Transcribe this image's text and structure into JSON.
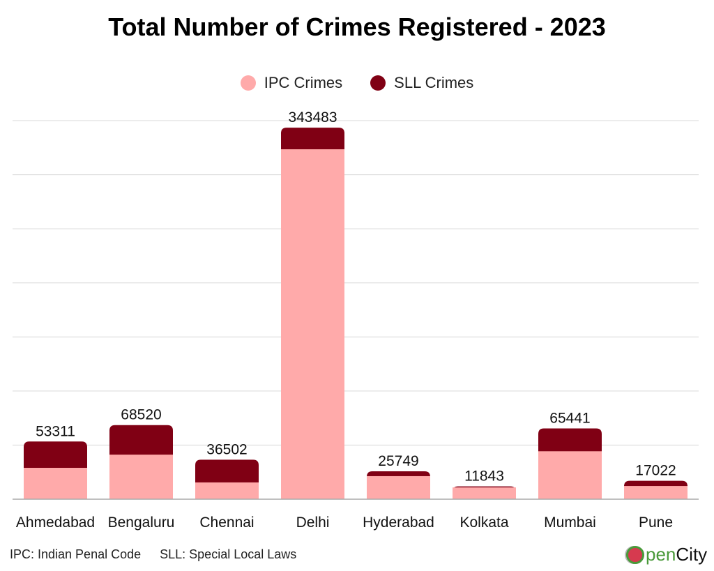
{
  "chart_data": {
    "type": "bar",
    "stacked": true,
    "title": "Total Number of Crimes Registered - 2023",
    "categories": [
      "Ahmedabad",
      "Bengaluru",
      "Chennai",
      "Delhi",
      "Hyderabad",
      "Kolkata",
      "Mumbai",
      "Pune"
    ],
    "series": [
      {
        "name": "IPC Crimes",
        "color": "#ffaaaa",
        "values": [
          29000,
          41200,
          15500,
          323500,
          21300,
          11200,
          44300,
          12200
        ]
      },
      {
        "name": "SLL Crimes",
        "color": "#800014",
        "values": [
          24311,
          27320,
          21002,
          19983,
          4449,
          643,
          21141,
          4822
        ]
      }
    ],
    "totals": [
      53311,
      68520,
      36502,
      343483,
      25749,
      11843,
      65441,
      17022
    ],
    "total_labels": [
      "53311",
      "68520",
      "36502",
      "343483",
      "25749",
      "11843",
      "65441",
      "17022"
    ],
    "ylim": [
      0,
      350000
    ],
    "ytick_step": 50000,
    "grid": true,
    "legend_position": "top-center",
    "xlabel": "",
    "ylabel": ""
  },
  "footnotes": {
    "ipc": "IPC: Indian Penal Code",
    "sll": "SLL: Special Local Laws"
  },
  "logo": {
    "open": "pen",
    "city": "City"
  }
}
